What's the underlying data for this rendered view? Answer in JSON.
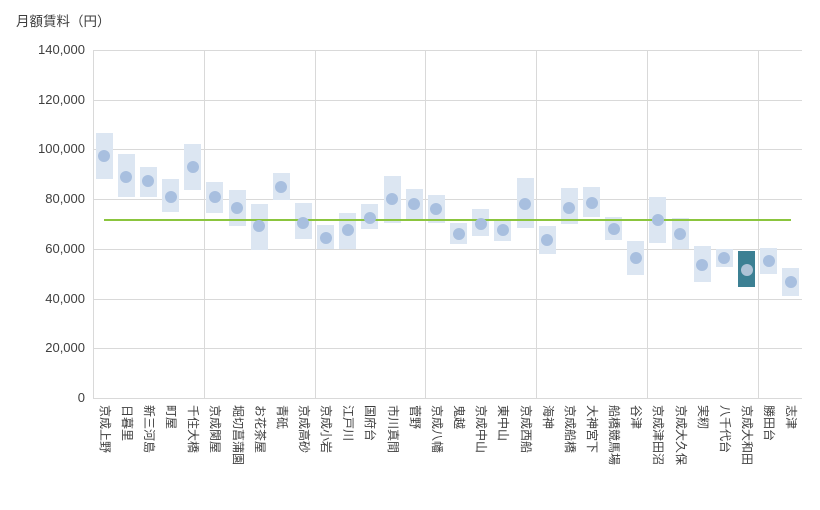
{
  "chart_data": {
    "type": "range-dot",
    "title": "月額賃料（円）",
    "categories": [
      "京成上野",
      "日暮里",
      "新三河島",
      "町屋",
      "千住大橋",
      "京成関屋",
      "堀切菖蒲園",
      "お花茶屋",
      "青砥",
      "京成高砂",
      "京成小岩",
      "江戸川",
      "国府台",
      "市川真間",
      "菅野",
      "京成八幡",
      "鬼越",
      "京成中山",
      "東中山",
      "京成西船",
      "海神",
      "京成船橋",
      "大神宮下",
      "船橋競馬場",
      "谷津",
      "京成津田沼",
      "京成大久保",
      "実籾",
      "八千代台",
      "京成大和田",
      "勝田台",
      "志津"
    ],
    "series": [
      {
        "name": "rent-range-low",
        "values": [
          88000,
          81000,
          81000,
          75000,
          83500,
          74500,
          69000,
          59500,
          79500,
          64000,
          60000,
          60000,
          68000,
          70500,
          72000,
          70500,
          62000,
          65000,
          63000,
          68500,
          58000,
          70000,
          73000,
          63500,
          49500,
          62500,
          60000,
          46500,
          52500,
          44500,
          50000,
          41000
        ]
      },
      {
        "name": "rent-range-high",
        "values": [
          106500,
          98000,
          93000,
          88000,
          102000,
          87000,
          83500,
          78000,
          90500,
          78500,
          69500,
          74500,
          78000,
          89500,
          84000,
          81500,
          70500,
          76000,
          71500,
          88500,
          69000,
          84500,
          85000,
          73000,
          63000,
          81000,
          72500,
          61000,
          60000,
          59000,
          60500,
          52500
        ]
      },
      {
        "name": "rent-typical",
        "values": [
          97500,
          89000,
          87500,
          81000,
          93000,
          81000,
          76500,
          69000,
          85000,
          70500,
          64500,
          67500,
          72500,
          80000,
          78000,
          76000,
          66000,
          70000,
          67500,
          78000,
          63500,
          76500,
          78500,
          68000,
          56500,
          71500,
          66000,
          53500,
          56500,
          51500,
          55000,
          46500
        ]
      }
    ],
    "highlight_index": 29,
    "highlight_category": "京成大和田",
    "average_line": {
      "value": 71700
    },
    "ylim": [
      0,
      140000
    ],
    "ytick_step": 20000,
    "ytick_labels": [
      "0",
      "20,000",
      "40,000",
      "60,000",
      "80,000",
      "100,000",
      "120,000",
      "140,000"
    ],
    "x_gridline_every": 5,
    "grid": true,
    "legend": "none",
    "colors": {
      "box_fill": "#dce6f2",
      "dot_fill": "#a8bfdf",
      "highlight_box_fill": "#3c8093",
      "highlight_dot_fill": "#aec3d6",
      "average_line": "#8bc53e",
      "gridline": "#d9d9d9",
      "text": "#3f3f3f",
      "background": "#ffffff"
    }
  }
}
